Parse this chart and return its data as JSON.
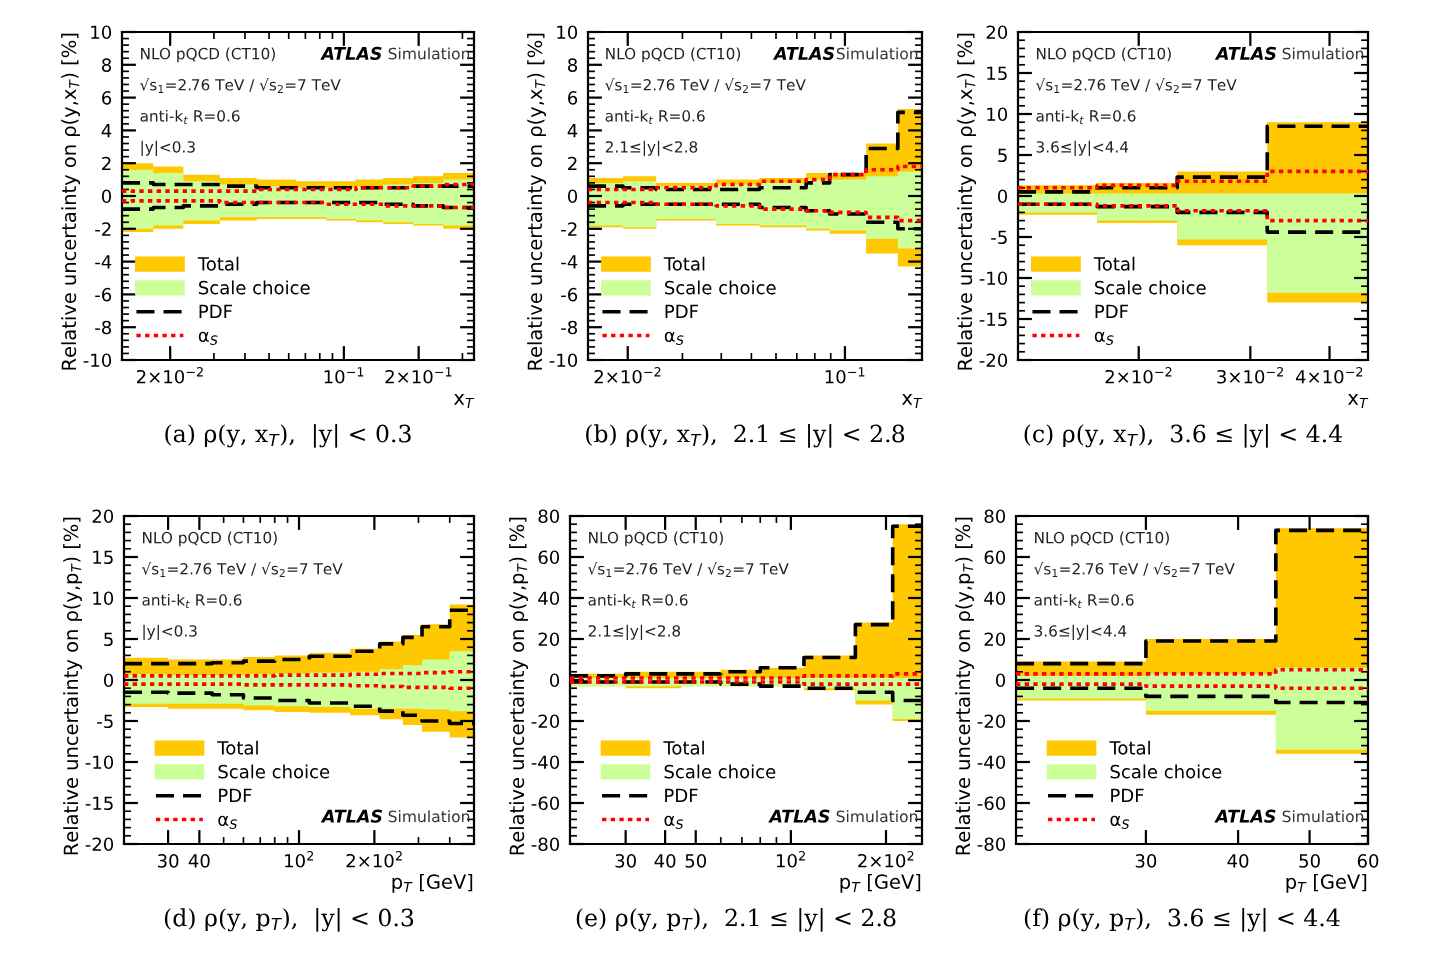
{
  "chart_data": [
    {
      "type": "step",
      "title": "(a) ρ(y, x$_{T}$),  |y| < 0.3",
      "xlabel": "x$_{T}$",
      "ylabel": "Relative uncertainty on ρ(y,x$_{T}$) [%]",
      "log": "x",
      "legend": "bottom left",
      "x": [
        0.0128,
        0.0171,
        0.0226,
        0.0317,
        0.0446,
        0.0644,
        0.0851,
        0.112,
        0.144,
        0.19,
        0.251,
        0.334
      ],
      "xlim": [
        0.0128,
        0.334
      ],
      "xticks": [
        {
          "value": 0.02,
          "label": "2×10$^{−2}$"
        },
        {
          "value": 0.1,
          "label": "10$^{−1}$"
        },
        {
          "value": 0.2,
          "label": "2×10$^{−1}$"
        }
      ],
      "ylim": [
        -10,
        10
      ],
      "yticks": [
        -10,
        -8,
        -6,
        -4,
        -2,
        0,
        2,
        4,
        6,
        8,
        10
      ],
      "annotations": [
        "NLO pQCD (CT10)",
        "√s$_{1}$=2.76 TeV / √s$_{2}$=7 TeV",
        "anti-k$_{t}$ R=0.6",
        "|y|<0.3",
        "ATLAS",
        "Simulation"
      ],
      "series": [
        {
          "name": "Total",
          "type": "area",
          "color": "#ffc800",
          "values": [
            2.0,
            1.8,
            1.3,
            1.1,
            1.0,
            0.9,
            0.9,
            1.0,
            1.1,
            1.2,
            1.4,
            1.4
          ]
        },
        {
          "type": "area",
          "color": "#ffc800",
          "values": [
            -2.2,
            -2.0,
            -1.7,
            -1.5,
            -1.4,
            -1.4,
            -1.5,
            -1.6,
            -1.7,
            -1.8,
            -2.0,
            -2.0
          ]
        },
        {
          "name": "Scale choice",
          "type": "area",
          "color": "#ccff99",
          "values": [
            1.6,
            1.4,
            0.9,
            0.7,
            0.6,
            0.5,
            0.5,
            0.6,
            0.7,
            0.8,
            1.0,
            1.0
          ]
        },
        {
          "type": "area",
          "color": "#ccff99",
          "values": [
            -2.0,
            -1.8,
            -1.5,
            -1.3,
            -1.3,
            -1.3,
            -1.4,
            -1.5,
            -1.6,
            -1.7,
            -1.8,
            -1.8
          ]
        },
        {
          "name": "PDF",
          "color": "#000000",
          "line_style": "dashed",
          "values": [
            0.8,
            0.7,
            0.7,
            0.6,
            0.5,
            0.5,
            0.5,
            0.5,
            0.5,
            0.6,
            0.6,
            0.6
          ]
        },
        {
          "color": "#000000",
          "line_style": "dashed",
          "values": [
            -0.8,
            -0.7,
            -0.6,
            -0.5,
            -0.4,
            -0.4,
            -0.4,
            -0.4,
            -0.5,
            -0.6,
            -0.7,
            -0.7
          ]
        },
        {
          "name": "α$_{S}$",
          "color": "#ff0000",
          "line_style": "dotted",
          "values": [
            0.3,
            0.3,
            0.3,
            0.3,
            0.4,
            0.4,
            0.4,
            0.5,
            0.5,
            0.6,
            0.7,
            0.7
          ]
        },
        {
          "color": "#ff0000",
          "line_style": "dotted",
          "values": [
            -0.3,
            -0.3,
            -0.3,
            -0.4,
            -0.4,
            -0.4,
            -0.5,
            -0.5,
            -0.6,
            -0.6,
            -0.7,
            -0.7
          ]
        }
      ]
    },
    {
      "type": "step",
      "title": "(b) ρ(y, x$_{T}$),  2.1 ≤ |y| < 2.8",
      "xlabel": "x$_{T}$",
      "ylabel": "Relative uncertainty on ρ(y,x$_{T}$) [%]",
      "log": "x",
      "legend": "bottom left",
      "x": [
        0.0149,
        0.0193,
        0.0247,
        0.0385,
        0.0531,
        0.075,
        0.0893,
        0.117,
        0.148,
        0.177
      ],
      "xlim": [
        0.0149,
        0.177
      ],
      "xticks": [
        {
          "value": 0.02,
          "label": "2×10$^{−2}$"
        },
        {
          "value": 0.1,
          "label": "10$^{−1}$"
        }
      ],
      "ylim": [
        -10,
        10
      ],
      "yticks": [
        -10,
        -8,
        -6,
        -4,
        -2,
        0,
        2,
        4,
        6,
        8,
        10
      ],
      "annotations": [
        "NLO pQCD (CT10)",
        "√s$_{1}$=2.76 TeV / √s$_{2}$=7 TeV",
        "anti-k$_{t}$ R=0.6",
        "2.1≤|y|<2.8",
        "ATLAS",
        "Simulation"
      ],
      "series": [
        {
          "name": "Total",
          "type": "area",
          "color": "#ffc800",
          "values": [
            1.1,
            1.2,
            0.8,
            1.0,
            1.1,
            1.4,
            1.4,
            3.2,
            5.3,
            5.3
          ]
        },
        {
          "type": "area",
          "color": "#ffc800",
          "values": [
            -1.9,
            -2.0,
            -1.5,
            -1.8,
            -1.9,
            -2.1,
            -2.3,
            -3.5,
            -4.3,
            -4.3
          ]
        },
        {
          "name": "Scale choice",
          "type": "area",
          "color": "#ccff99",
          "values": [
            0.8,
            0.9,
            0.6,
            0.7,
            0.8,
            1.0,
            1.0,
            1.2,
            1.5,
            1.5
          ]
        },
        {
          "type": "area",
          "color": "#ccff99",
          "values": [
            -1.8,
            -1.9,
            -1.4,
            -1.7,
            -1.8,
            -2.0,
            -2.1,
            -2.6,
            -3.2,
            -3.2
          ]
        },
        {
          "name": "PDF",
          "color": "#000000",
          "line_style": "dashed",
          "values": [
            0.6,
            0.5,
            0.4,
            0.4,
            0.5,
            0.8,
            1.3,
            2.9,
            5.1,
            5.1
          ]
        },
        {
          "color": "#000000",
          "line_style": "dashed",
          "values": [
            -0.6,
            -0.5,
            -0.5,
            -0.5,
            -0.7,
            -0.9,
            -1.1,
            -1.6,
            -2.0,
            -2.0
          ]
        },
        {
          "name": "α$_{S}$",
          "color": "#ff0000",
          "line_style": "dotted",
          "values": [
            0.4,
            0.4,
            0.5,
            0.7,
            0.9,
            1.0,
            1.3,
            1.6,
            1.8,
            1.8
          ]
        },
        {
          "color": "#ff0000",
          "line_style": "dotted",
          "values": [
            -0.4,
            -0.4,
            -0.5,
            -0.6,
            -0.8,
            -0.9,
            -1.0,
            -1.3,
            -1.5,
            -1.5
          ]
        }
      ]
    },
    {
      "type": "step",
      "title": "(c) ρ(y, x$_{T}$),  3.6 ≤ |y| < 4.4",
      "xlabel": "x$_{T}$",
      "ylabel": "Relative uncertainty on ρ(y,x$_{T}$) [%]",
      "log": "x",
      "legend": "bottom left",
      "x": [
        0.0129,
        0.0172,
        0.023,
        0.0319,
        0.046
      ],
      "xlim": [
        0.0129,
        0.046
      ],
      "xticks": [
        {
          "value": 0.02,
          "label": "2×10$^{−2}$"
        },
        {
          "value": 0.03,
          "label": "3×10$^{−2}$"
        },
        {
          "value": 0.04,
          "label": "4×10$^{−2}$"
        }
      ],
      "ylim": [
        -20,
        20
      ],
      "yticks": [
        -20,
        -15,
        -10,
        -5,
        0,
        5,
        10,
        15,
        20
      ],
      "annotations": [
        "NLO pQCD (CT10)",
        "√s$_{1}$=2.76 TeV / √s$_{2}$=7 TeV",
        "anti-k$_{t}$ R=0.6",
        "3.6≤|y|<4.4",
        "ATLAS",
        "Simulation"
      ],
      "series": [
        {
          "name": "Total",
          "type": "area",
          "color": "#ffc800",
          "values": [
            1.3,
            1.6,
            3.0,
            9.0,
            9.0
          ]
        },
        {
          "type": "area",
          "color": "#ffc800",
          "values": [
            -2.3,
            -3.3,
            -6.0,
            -13.0,
            -13.0
          ]
        },
        {
          "name": "Scale choice",
          "type": "area",
          "color": "#ccff99",
          "values": [
            0.3,
            0.3,
            0.3,
            0.3,
            0.3
          ]
        },
        {
          "type": "area",
          "color": "#ccff99",
          "values": [
            -2.0,
            -3.0,
            -5.3,
            -11.8,
            -11.8
          ]
        },
        {
          "name": "PDF",
          "color": "#000000",
          "line_style": "dashed",
          "values": [
            0.5,
            1.0,
            2.3,
            8.5,
            8.5
          ]
        },
        {
          "color": "#000000",
          "line_style": "dashed",
          "values": [
            -1.0,
            -1.3,
            -2.0,
            -4.4,
            -4.4
          ]
        },
        {
          "name": "α$_{S}$",
          "color": "#ff0000",
          "line_style": "dotted",
          "values": [
            1.0,
            1.3,
            1.8,
            3.0,
            3.0
          ]
        },
        {
          "color": "#ff0000",
          "line_style": "dotted",
          "values": [
            -1.0,
            -1.2,
            -1.8,
            -3.0,
            -3.0
          ]
        }
      ]
    },
    {
      "type": "step",
      "title": "(d) ρ(y, p$_{T}$),  |y| < 0.3",
      "xlabel": "p$_{T}$ [GeV]",
      "ylabel": "Relative uncertainty on ρ(y,p$_{T}$) [%]",
      "log": "x",
      "legend": "bottom left",
      "x": [
        20,
        30,
        45,
        60,
        80,
        110,
        160,
        210,
        260,
        310,
        400,
        500
      ],
      "xlim": [
        20,
        500
      ],
      "xticks": [
        30,
        40,
        {
          "value": 100,
          "label": "10$^{2}$"
        },
        {
          "value": 200,
          "label": "2×10$^{2}$"
        }
      ],
      "ylim": [
        -20,
        20
      ],
      "yticks": [
        -20,
        -15,
        -10,
        -5,
        0,
        5,
        10,
        15,
        20
      ],
      "annotations": [
        "NLO pQCD (CT10)",
        "√s$_{1}$=2.76 TeV / √s$_{2}$=7 TeV",
        "anti-k$_{t}$ R=0.6",
        "|y|<0.3",
        "ATLAS",
        "Simulation"
      ],
      "series": [
        {
          "name": "Total",
          "type": "area",
          "color": "#ffc800",
          "values": [
            2.7,
            2.5,
            2.5,
            2.8,
            3.0,
            3.3,
            3.8,
            4.7,
            5.5,
            6.8,
            9.2,
            9.2
          ]
        },
        {
          "type": "area",
          "color": "#ffc800",
          "values": [
            -3.3,
            -3.5,
            -3.5,
            -3.7,
            -3.9,
            -4.0,
            -4.3,
            -4.8,
            -5.5,
            -6.3,
            -7.0,
            -7.0
          ]
        },
        {
          "name": "Scale choice",
          "type": "area",
          "color": "#ccff99",
          "values": [
            0.7,
            0.6,
            0.6,
            0.7,
            0.8,
            0.9,
            1.0,
            1.3,
            1.8,
            2.5,
            3.5,
            3.5
          ]
        },
        {
          "type": "area",
          "color": "#ccff99",
          "values": [
            -2.9,
            -2.9,
            -2.9,
            -3.1,
            -3.2,
            -3.3,
            -3.5,
            -3.5,
            -3.5,
            -3.6,
            -3.8,
            -3.8
          ]
        },
        {
          "name": "PDF",
          "color": "#000000",
          "line_style": "dashed",
          "values": [
            2.0,
            2.0,
            2.1,
            2.3,
            2.5,
            2.9,
            3.5,
            4.4,
            5.2,
            6.5,
            8.5,
            8.5
          ]
        },
        {
          "color": "#000000",
          "line_style": "dashed",
          "values": [
            -1.5,
            -1.6,
            -1.8,
            -2.2,
            -2.5,
            -2.8,
            -3.2,
            -3.8,
            -4.3,
            -5.0,
            -5.3,
            -5.3
          ]
        },
        {
          "name": "α$_{S}$",
          "color": "#ff0000",
          "line_style": "dotted",
          "values": [
            0.5,
            0.5,
            0.5,
            0.5,
            0.6,
            0.6,
            0.7,
            0.8,
            0.8,
            0.9,
            1.0,
            1.0
          ]
        },
        {
          "color": "#ff0000",
          "line_style": "dotted",
          "values": [
            -0.5,
            -0.5,
            -0.5,
            -0.6,
            -0.6,
            -0.6,
            -0.7,
            -0.8,
            -0.9,
            -0.9,
            -1.0,
            -1.0
          ]
        }
      ]
    },
    {
      "type": "step",
      "title": "(e) ρ(y, p$_{T}$),  2.1 ≤ |y| < 2.8",
      "xlabel": "p$_{T}$ [GeV]",
      "ylabel": "Relative uncertainty on ρ(y,p$_{T}$) [%]",
      "log": "x",
      "legend": "bottom left",
      "x": [
        20,
        30,
        45,
        60,
        80,
        110,
        160,
        210,
        260
      ],
      "xlim": [
        20,
        260
      ],
      "xticks": [
        30,
        40,
        50,
        {
          "value": 100,
          "label": "10$^{2}$"
        },
        {
          "value": 200,
          "label": "2×10$^{2}$"
        }
      ],
      "ylim": [
        -80,
        80
      ],
      "yticks": [
        -80,
        -60,
        -40,
        -20,
        0,
        20,
        40,
        60,
        80
      ],
      "annotations": [
        "NLO pQCD (CT10)",
        "√s$_{1}$=2.76 TeV / √s$_{2}$=7 TeV",
        "anti-k$_{t}$ R=0.6",
        "2.1≤|y|<2.8",
        "ATLAS",
        "Simulation"
      ],
      "series": [
        {
          "name": "Total",
          "type": "area",
          "color": "#ffc800",
          "values": [
            3,
            4,
            4,
            5,
            6,
            12,
            28,
            76,
            76
          ]
        },
        {
          "type": "area",
          "color": "#ffc800",
          "values": [
            -3,
            -4,
            -3,
            -3,
            -3,
            -5,
            -12,
            -20,
            -20
          ]
        },
        {
          "name": "Scale choice",
          "type": "area",
          "color": "#ccff99",
          "values": [
            1,
            1,
            1,
            1,
            1,
            1,
            1,
            1,
            1
          ]
        },
        {
          "type": "area",
          "color": "#ccff99",
          "values": [
            -3,
            -3,
            -3,
            -3,
            -3,
            -4,
            -10,
            -19,
            -19
          ]
        },
        {
          "name": "PDF",
          "color": "#000000",
          "line_style": "dashed",
          "values": [
            2,
            3,
            3,
            4,
            6,
            11,
            27,
            75,
            75
          ]
        },
        {
          "color": "#000000",
          "line_style": "dashed",
          "values": [
            -1,
            -1,
            -1,
            -2,
            -3,
            -4,
            -6,
            -10,
            -10
          ]
        },
        {
          "name": "α$_{S}$",
          "color": "#ff0000",
          "line_style": "dotted",
          "values": [
            1,
            1,
            1,
            1,
            1,
            2,
            2,
            3,
            3
          ]
        },
        {
          "color": "#ff0000",
          "line_style": "dotted",
          "values": [
            -1,
            -1,
            -1,
            -1,
            -1,
            -2,
            -2,
            -2,
            -2
          ]
        }
      ]
    },
    {
      "type": "step",
      "title": "(f) ρ(y, p$_{T}$),  3.6 ≤ |y| < 4.4",
      "xlabel": "p$_{T}$ [GeV]",
      "ylabel": "Relative uncertainty on ρ(y,p$_{T}$) [%]",
      "log": "x",
      "legend": "bottom left",
      "x": [
        20,
        30,
        45,
        60
      ],
      "xlim": [
        20,
        60
      ],
      "xticks": [
        30,
        40,
        50,
        60
      ],
      "ylim": [
        -80,
        80
      ],
      "yticks": [
        -80,
        -60,
        -40,
        -20,
        0,
        20,
        40,
        60,
        80
      ],
      "annotations": [
        "NLO pQCD (CT10)",
        "√s$_{1}$=2.76 TeV / √s$_{2}$=7 TeV",
        "anti-k$_{t}$ R=0.6",
        "3.6≤|y|<4.4",
        "ATLAS",
        "Simulation"
      ],
      "series": [
        {
          "name": "Total",
          "type": "area",
          "color": "#ffc800",
          "values": [
            9,
            20,
            74,
            74
          ]
        },
        {
          "type": "area",
          "color": "#ffc800",
          "values": [
            -10,
            -17,
            -36,
            -36
          ]
        },
        {
          "name": "Scale choice",
          "type": "area",
          "color": "#ccff99",
          "values": [
            2,
            3,
            6,
            6
          ]
        },
        {
          "type": "area",
          "color": "#ccff99",
          "values": [
            -9,
            -15,
            -34,
            -34
          ]
        },
        {
          "name": "PDF",
          "color": "#000000",
          "line_style": "dashed",
          "values": [
            8,
            19,
            73,
            73
          ]
        },
        {
          "color": "#000000",
          "line_style": "dashed",
          "values": [
            -4,
            -8,
            -11,
            -11
          ]
        },
        {
          "name": "α$_{S}$",
          "color": "#ff0000",
          "line_style": "dotted",
          "values": [
            3,
            3,
            5,
            5
          ]
        },
        {
          "color": "#ff0000",
          "line_style": "dotted",
          "values": [
            -2,
            -3,
            -4,
            -4
          ]
        }
      ]
    }
  ]
}
